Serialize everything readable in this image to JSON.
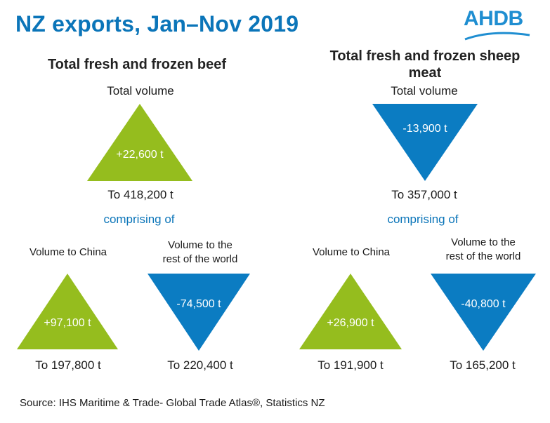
{
  "title": "NZ exports, Jan–Nov 2019",
  "logo": {
    "text": "AHDB"
  },
  "colors": {
    "increase": "#95bd1e",
    "decrease": "#0b7cc2",
    "title": "#0b75b9"
  },
  "beef": {
    "heading": "Total fresh and frozen beef",
    "total": {
      "label": "Total volume",
      "change": "+22,600 t",
      "result": "To 418,200 t",
      "direction": "up"
    },
    "comprising": "comprising of",
    "china": {
      "label": "Volume to China",
      "change": "+97,100 t",
      "result": "To 197,800 t",
      "direction": "up"
    },
    "rest": {
      "label_line1": "Volume to the",
      "label_line2": "rest of the world",
      "change": "-74,500 t",
      "result": "To 220,400 t",
      "direction": "down"
    }
  },
  "sheep": {
    "heading_line1": "Total fresh and frozen sheep",
    "heading_line2": "meat",
    "total": {
      "label": "Total volume",
      "change": "-13,900 t",
      "result": "To 357,000 t",
      "direction": "down"
    },
    "comprising": "comprising of",
    "china": {
      "label": "Volume to China",
      "change": "+26,900 t",
      "result": "To 191,900 t",
      "direction": "up"
    },
    "rest": {
      "label_line1": "Volume to the",
      "label_line2": "rest of the world",
      "change": "-40,800 t",
      "result": "To 165,200 t",
      "direction": "down"
    }
  },
  "source": "Source: IHS Maritime & Trade- Global Trade Atlas®, Statistics NZ"
}
